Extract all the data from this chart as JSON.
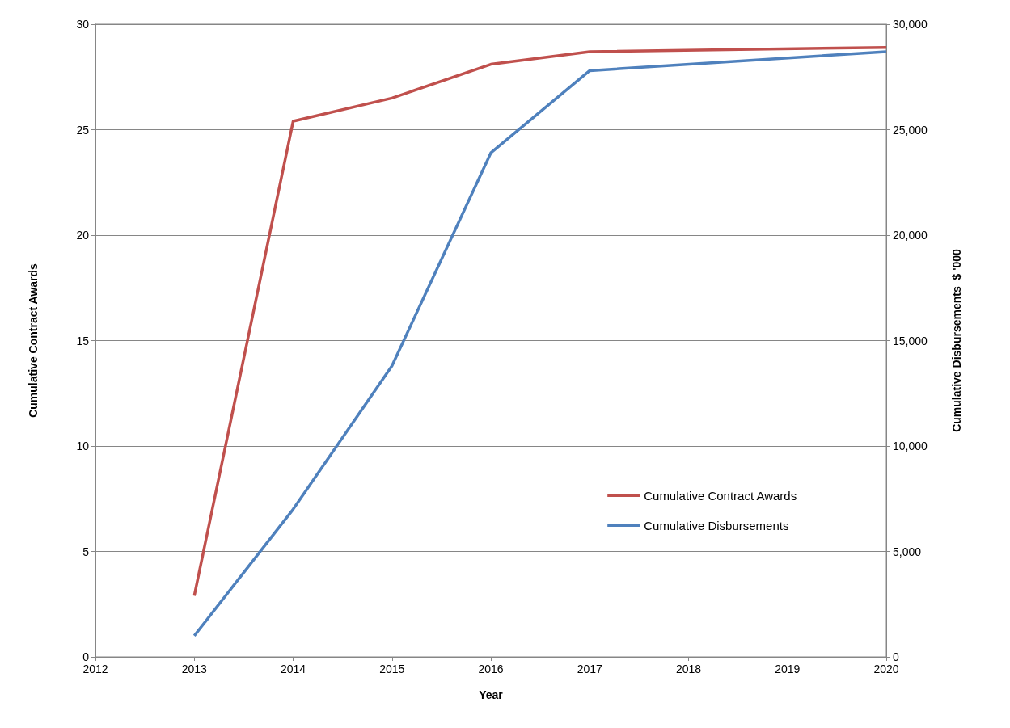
{
  "chart_data": {
    "type": "line",
    "xlabel": "Year",
    "ylabel": "Cumulative Contract Awards",
    "y2label": "Cumulative Disbursements  $ '000",
    "x": [
      2013,
      2014,
      2015,
      2016,
      2017,
      2020
    ],
    "series": [
      {
        "name": "Cumulative Contract Awards",
        "color": "#c0504d",
        "values": [
          2.9,
          25.4,
          26.5,
          28.1,
          28.7,
          28.9
        ]
      },
      {
        "name": "Cumulative Disbursements",
        "color": "#4f81bd",
        "axis": "y2",
        "values": [
          1000,
          7000,
          13800,
          23900,
          27800,
          28700
        ]
      }
    ],
    "xlim": [
      2012,
      2020
    ],
    "xticks": [
      2012,
      2013,
      2014,
      2015,
      2016,
      2017,
      2018,
      2019,
      2020
    ],
    "ylim": [
      0,
      30
    ],
    "yticks": [
      0,
      5,
      10,
      15,
      20,
      25,
      30
    ],
    "y2lim": [
      0,
      30000
    ],
    "y2ticks": [
      0,
      {
        "value": 5000,
        "label": "5,000"
      },
      {
        "value": 10000,
        "label": "10,000"
      },
      {
        "value": 15000,
        "label": "15,000"
      },
      {
        "value": 20000,
        "label": "20,000"
      },
      {
        "value": 25000,
        "label": "25,000"
      },
      {
        "value": 30000,
        "label": "30,000"
      }
    ],
    "grid": "y",
    "legend": "bottom right",
    "marker": "none",
    "line_style": "solid"
  }
}
